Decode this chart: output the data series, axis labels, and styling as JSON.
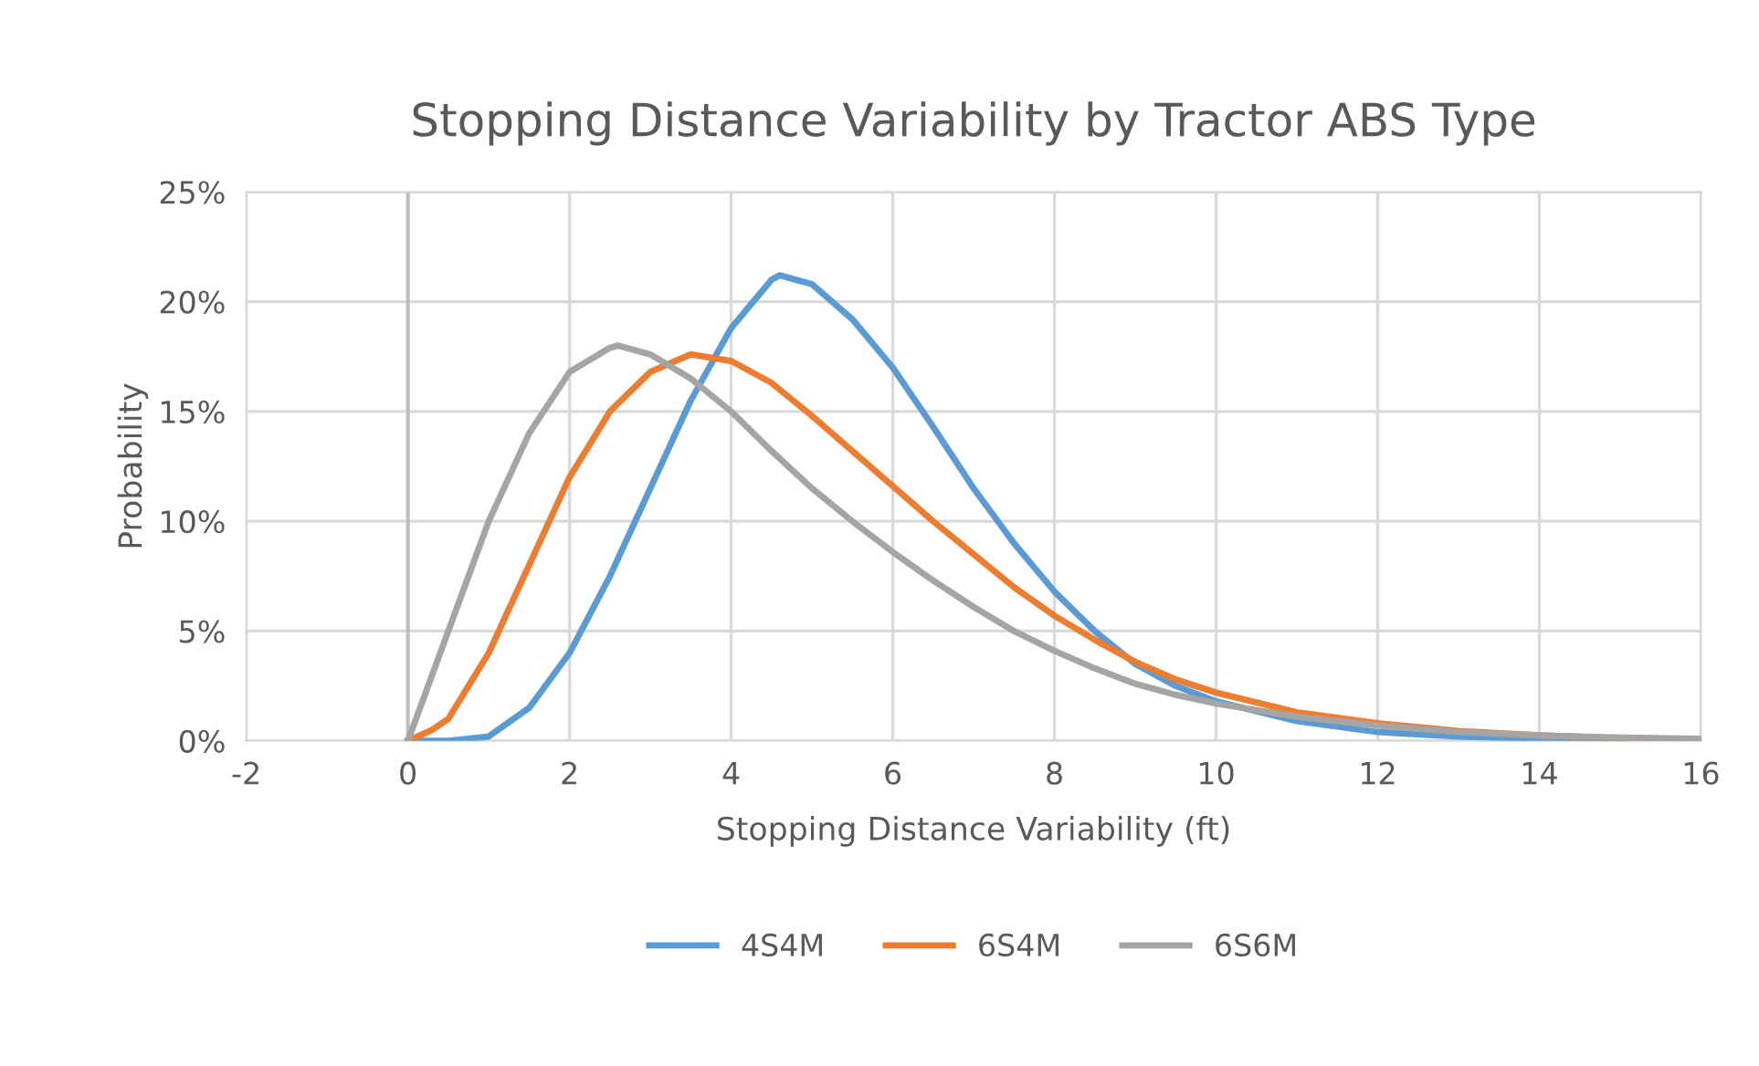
{
  "chart_data": {
    "type": "line",
    "title": "Stopping Distance Variability by Tractor ABS Type",
    "xlabel": "Stopping Distance Variability (ft)",
    "ylabel": "Probability",
    "xlim": [
      -2,
      16
    ],
    "xticks": [
      -2,
      0,
      2,
      4,
      6,
      8,
      10,
      12,
      14,
      16
    ],
    "ylim": [
      0,
      25
    ],
    "yticks": [
      {
        "value": 0,
        "label": "0%"
      },
      {
        "value": 5,
        "label": "5%"
      },
      {
        "value": 10,
        "label": "10%"
      },
      {
        "value": 15,
        "label": "15%"
      },
      {
        "value": 20,
        "label": "20%"
      },
      {
        "value": 25,
        "label": "25%"
      }
    ],
    "grid": true,
    "legend": "bottom",
    "marker": "none",
    "line_style": "solid",
    "ref_lines": [
      {
        "axis": "x",
        "value": 0,
        "color": "#bfbfbf"
      }
    ],
    "series": [
      {
        "name": "4S4M",
        "color": "#5b9bd5",
        "x": [
          0,
          0.5,
          1,
          1.5,
          2,
          2.5,
          3,
          3.5,
          4,
          4.5,
          4.6,
          5,
          5.5,
          6,
          6.5,
          7,
          7.5,
          8,
          8.5,
          9,
          9.5,
          10,
          11,
          12,
          13,
          14,
          15,
          16
        ],
        "values": [
          0,
          0,
          0.2,
          1.5,
          4,
          7.5,
          11.5,
          15.5,
          18.8,
          21,
          21.2,
          20.8,
          19.2,
          17,
          14.3,
          11.5,
          9,
          6.8,
          5,
          3.5,
          2.5,
          1.8,
          0.9,
          0.4,
          0.2,
          0.1,
          0.05,
          0.02
        ]
      },
      {
        "name": "6S4M",
        "color": "#ed7d31",
        "x": [
          0,
          0.3,
          0.5,
          1,
          1.5,
          2,
          2.5,
          3,
          3.5,
          4,
          4.5,
          5,
          5.5,
          6,
          6.5,
          7,
          7.5,
          8,
          8.5,
          9,
          9.5,
          10,
          11,
          12,
          13,
          14,
          15,
          16
        ],
        "values": [
          0,
          0.5,
          1,
          4,
          8,
          12,
          15,
          16.8,
          17.6,
          17.3,
          16.3,
          14.8,
          13.2,
          11.6,
          10,
          8.5,
          7,
          5.7,
          4.6,
          3.6,
          2.8,
          2.2,
          1.3,
          0.8,
          0.45,
          0.25,
          0.12,
          0.06
        ]
      },
      {
        "name": "6S6M",
        "color": "#a5a5a5",
        "x": [
          0,
          0.5,
          1,
          1.5,
          2,
          2.5,
          2.6,
          3,
          3.5,
          4,
          4.5,
          5,
          5.5,
          6,
          6.5,
          7,
          7.5,
          8,
          8.5,
          9,
          9.5,
          10,
          11,
          12,
          13,
          14,
          15,
          16
        ],
        "values": [
          0,
          5,
          10,
          14,
          16.8,
          17.9,
          18,
          17.6,
          16.5,
          15,
          13.2,
          11.5,
          10,
          8.6,
          7.3,
          6.1,
          5,
          4.1,
          3.3,
          2.6,
          2.1,
          1.7,
          1.1,
          0.7,
          0.4,
          0.25,
          0.15,
          0.1
        ]
      }
    ]
  }
}
